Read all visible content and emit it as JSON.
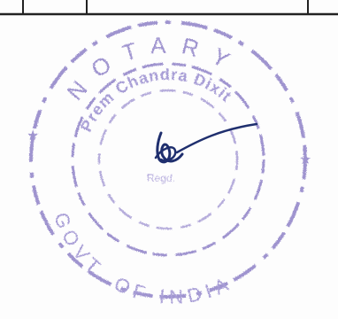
{
  "seal": {
    "top_text": "NOTARY",
    "name_text": "Prem Chandra Dixit",
    "bottom_text": "GOVT. OF INDIA",
    "center_text": "Regd.",
    "ink_color": "#8f82c8"
  },
  "signature": {
    "ink_color": "#1f2f6e"
  },
  "table": {
    "line_color": "#222222"
  }
}
